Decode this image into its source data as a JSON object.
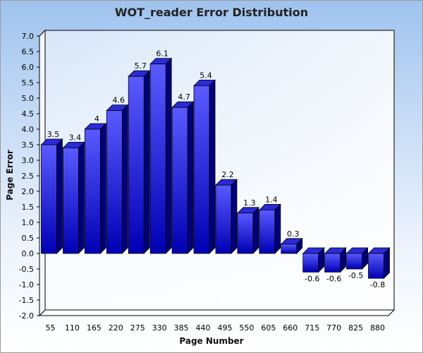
{
  "chart_data": {
    "type": "bar",
    "title": "WOT_reader Error Distribution",
    "xlabel": "Page Number",
    "ylabel": "Page Error",
    "categories": [
      "55",
      "110",
      "165",
      "220",
      "275",
      "330",
      "385",
      "440",
      "495",
      "550",
      "605",
      "660",
      "715",
      "770",
      "825",
      "880"
    ],
    "values": [
      3.5,
      3.4,
      4,
      4.6,
      5.7,
      6.1,
      4.7,
      5.4,
      2.2,
      1.3,
      1.4,
      0.3,
      -0.6,
      -0.6,
      -0.5,
      -0.8
    ],
    "value_labels": [
      "3.5",
      "3.4",
      "4",
      "4.6",
      "5.7",
      "6.1",
      "4.7",
      "5.4",
      "2.2",
      "1.3",
      "1.4",
      "0.3",
      "-0.6",
      "-0.6",
      "-0.5",
      "-0.8"
    ],
    "ylim": [
      -2.0,
      7.0
    ],
    "yticks": [
      "-2.0",
      "-1.5",
      "-1.0",
      "-0.5",
      "0.0",
      "0.5",
      "1.0",
      "1.5",
      "2.0",
      "2.5",
      "3.0",
      "3.5",
      "4.0",
      "4.5",
      "5.0",
      "5.5",
      "6.0",
      "6.5",
      "7.0"
    ],
    "grid": false,
    "legend": "none",
    "colors": {
      "bar_front_top": "#5a5aff",
      "bar_front_bottom": "#0000b4",
      "bar_top": "#2a2ad8",
      "bar_side": "#00007a",
      "bar_edge": "#000000"
    }
  }
}
